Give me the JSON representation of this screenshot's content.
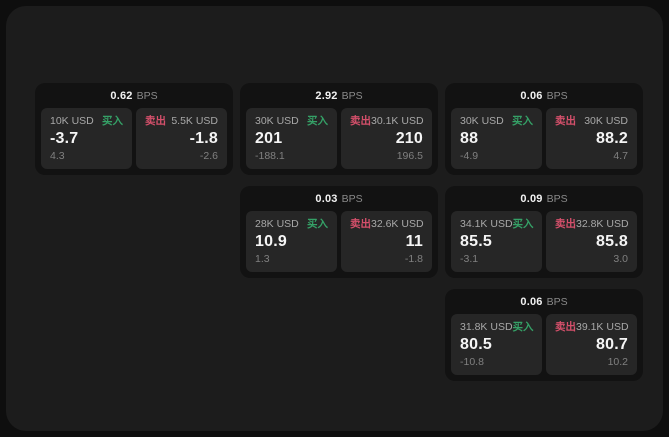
{
  "labels": {
    "buy": "买入",
    "sell": "卖出",
    "bps_unit": "BPS"
  },
  "colors": {
    "buy": "#35a167",
    "sell": "#d5506b",
    "page_bg": "#0e0e0e",
    "panel_bg": "#1c1c1c",
    "card_bg": "#121212",
    "tile_bg": "#262626"
  },
  "cards": [
    {
      "row": 1,
      "col": 1,
      "bps": "0.62",
      "buy": {
        "amount": "10K USD",
        "value": "-3.7",
        "sub": "4.3"
      },
      "sell": {
        "amount": "5.5K USD",
        "value": "-1.8",
        "sub": "-2.6"
      }
    },
    {
      "row": 1,
      "col": 2,
      "bps": "2.92",
      "buy": {
        "amount": "30K USD",
        "value": "201",
        "sub": "-188.1"
      },
      "sell": {
        "amount": "30.1K USD",
        "value": "210",
        "sub": "196.5"
      }
    },
    {
      "row": 1,
      "col": 3,
      "bps": "0.06",
      "buy": {
        "amount": "30K USD",
        "value": "88",
        "sub": "-4.9"
      },
      "sell": {
        "amount": "30K USD",
        "value": "88.2",
        "sub": "4.7"
      }
    },
    {
      "row": 2,
      "col": 2,
      "bps": "0.03",
      "buy": {
        "amount": "28K USD",
        "value": "10.9",
        "sub": "1.3"
      },
      "sell": {
        "amount": "32.6K USD",
        "value": "11",
        "sub": "-1.8"
      }
    },
    {
      "row": 2,
      "col": 3,
      "bps": "0.09",
      "buy": {
        "amount": "34.1K USD",
        "value": "85.5",
        "sub": "-3.1"
      },
      "sell": {
        "amount": "32.8K USD",
        "value": "85.8",
        "sub": "3.0"
      }
    },
    {
      "row": 3,
      "col": 3,
      "bps": "0.06",
      "buy": {
        "amount": "31.8K USD",
        "value": "80.5",
        "sub": "-10.8"
      },
      "sell": {
        "amount": "39.1K USD",
        "value": "80.7",
        "sub": "10.2"
      }
    }
  ]
}
